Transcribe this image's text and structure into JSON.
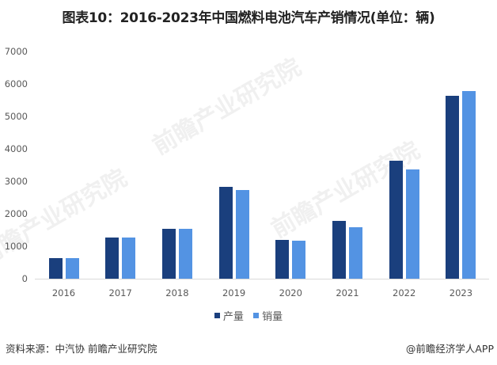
{
  "title": "图表10：2016-2023年中国燃料电池汽车产销情况(单位：辆)",
  "watermark": {
    "text": "前瞻产业研究院"
  },
  "colors": {
    "production": "#1a3f7d",
    "sales": "#5393e3"
  },
  "chart_data": {
    "type": "bar",
    "title": "图表10：2016-2023年中国燃料电池汽车产销情况(单位：辆)",
    "xlabel": "",
    "ylabel": "辆",
    "categories": [
      "2016",
      "2017",
      "2018",
      "2019",
      "2020",
      "2021",
      "2022",
      "2023"
    ],
    "series": [
      {
        "name": "产量",
        "color": "#1a3f7d",
        "values": [
          629,
          1272,
          1527,
          2833,
          1199,
          1777,
          3626,
          5631
        ]
      },
      {
        "name": "销量",
        "color": "#5393e3",
        "values": [
          629,
          1275,
          1527,
          2737,
          1177,
          1586,
          3367,
          5791
        ]
      }
    ],
    "yticks": [
      "0",
      "1000",
      "2000",
      "3000",
      "4000",
      "5000",
      "6000",
      "7000"
    ],
    "ylim": [
      0,
      7000
    ],
    "grid": false,
    "legend_position": "bottom"
  },
  "legend": {
    "items": [
      "产量",
      "销量"
    ]
  },
  "footer": {
    "source": "资料来源：中汽协 前瞻产业研究院",
    "credit": "@前瞻经济学人APP"
  }
}
